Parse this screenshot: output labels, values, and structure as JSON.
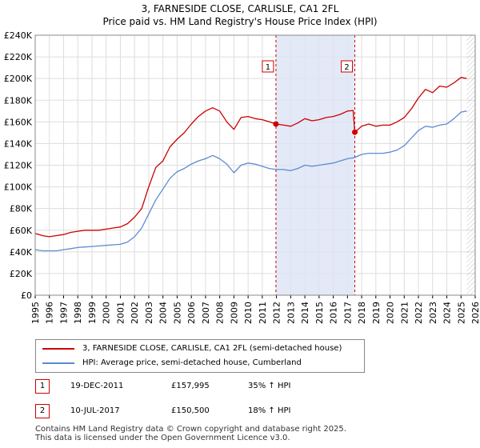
{
  "chart_data": {
    "type": "line",
    "title": "3, FARNESIDE CLOSE, CARLISLE, CA1 2FL",
    "subtitle": "Price paid vs. HM Land Registry's House Price Index (HPI)",
    "xlim": [
      1995,
      2026
    ],
    "ylim": [
      0,
      240000
    ],
    "xticks": [
      "1995",
      "1996",
      "1997",
      "1998",
      "1999",
      "2000",
      "2001",
      "2002",
      "2003",
      "2004",
      "2005",
      "2006",
      "2007",
      "2008",
      "2009",
      "2010",
      "2011",
      "2012",
      "2013",
      "2014",
      "2015",
      "2016",
      "2017",
      "2018",
      "2019",
      "2020",
      "2021",
      "2022",
      "2023",
      "2024",
      "2025",
      "2026"
    ],
    "yticks": [
      "£0",
      "£20K",
      "£40K",
      "£60K",
      "£80K",
      "£100K",
      "£120K",
      "£140K",
      "£160K",
      "£180K",
      "£200K",
      "£220K",
      "£240K"
    ],
    "yvalues": [
      0,
      20000,
      40000,
      60000,
      80000,
      100000,
      120000,
      140000,
      160000,
      180000,
      200000,
      220000,
      240000
    ],
    "grid": true,
    "series": [
      {
        "name": "3, FARNESIDE CLOSE, CARLISLE, CA1 2FL (semi-detached house)",
        "color": "#cc0000",
        "x": [
          1995.0,
          1995.5,
          1996.0,
          1996.5,
          1997.0,
          1997.5,
          1998.0,
          1998.5,
          1999.0,
          1999.5,
          2000.0,
          2000.5,
          2001.0,
          2001.5,
          2002.0,
          2002.5,
          2003.0,
          2003.5,
          2004.0,
          2004.5,
          2005.0,
          2005.5,
          2006.0,
          2006.5,
          2007.0,
          2007.5,
          2008.0,
          2008.5,
          2009.0,
          2009.5,
          2010.0,
          2010.5,
          2011.0,
          2011.5,
          2011.96,
          2012.5,
          2013.0,
          2013.5,
          2014.0,
          2014.5,
          2015.0,
          2015.5,
          2016.0,
          2016.5,
          2017.0,
          2017.4,
          2017.52,
          2018.0,
          2018.5,
          2019.0,
          2019.5,
          2020.0,
          2020.5,
          2021.0,
          2021.5,
          2022.0,
          2022.5,
          2023.0,
          2023.5,
          2024.0,
          2024.5,
          2025.0,
          2025.4
        ],
        "values": [
          57000,
          55000,
          54000,
          55000,
          56000,
          58000,
          59000,
          60000,
          60000,
          60000,
          61000,
          62000,
          63000,
          66000,
          72000,
          80000,
          100000,
          118000,
          124000,
          137000,
          144000,
          150000,
          158000,
          165000,
          170000,
          173000,
          170000,
          160000,
          153000,
          164000,
          165000,
          163000,
          162000,
          160000,
          157995,
          157000,
          156000,
          159000,
          163000,
          161000,
          162000,
          164000,
          165000,
          167000,
          170000,
          170500,
          150500,
          156000,
          158000,
          156000,
          157000,
          157000,
          160000,
          164000,
          172000,
          182000,
          190000,
          187000,
          193000,
          192000,
          196000,
          201000,
          200000
        ]
      },
      {
        "name": "HPI: Average price, semi-detached house, Cumberland",
        "color": "#5b8bd0",
        "x": [
          1995.0,
          1995.5,
          1996.0,
          1996.5,
          1997.0,
          1997.5,
          1998.0,
          1998.5,
          1999.0,
          1999.5,
          2000.0,
          2000.5,
          2001.0,
          2001.5,
          2002.0,
          2002.5,
          2003.0,
          2003.5,
          2004.0,
          2004.5,
          2005.0,
          2005.5,
          2006.0,
          2006.5,
          2007.0,
          2007.5,
          2008.0,
          2008.5,
          2009.0,
          2009.5,
          2010.0,
          2010.5,
          2011.0,
          2011.5,
          2012.0,
          2012.5,
          2013.0,
          2013.5,
          2014.0,
          2014.5,
          2015.0,
          2015.5,
          2016.0,
          2016.5,
          2017.0,
          2017.5,
          2018.0,
          2018.5,
          2019.0,
          2019.5,
          2020.0,
          2020.5,
          2021.0,
          2021.5,
          2022.0,
          2022.5,
          2023.0,
          2023.5,
          2024.0,
          2024.5,
          2025.0,
          2025.4
        ],
        "values": [
          42000,
          41000,
          41000,
          41000,
          42000,
          43000,
          44000,
          44500,
          45000,
          45500,
          46000,
          46500,
          47000,
          49000,
          54000,
          62000,
          75000,
          88000,
          98000,
          108000,
          114000,
          117000,
          121000,
          124000,
          126000,
          129000,
          126000,
          121000,
          113000,
          120000,
          122000,
          121000,
          119000,
          117000,
          116000,
          116000,
          115000,
          117000,
          120000,
          119000,
          120000,
          121000,
          122000,
          124000,
          126000,
          127000,
          130000,
          131000,
          131000,
          131000,
          132000,
          134000,
          138000,
          145000,
          152000,
          156000,
          155000,
          157000,
          158000,
          163000,
          169000,
          170000
        ]
      }
    ],
    "sales": [
      {
        "label": "1",
        "x": 2011.96,
        "value": 157995
      },
      {
        "label": "2",
        "x": 2017.52,
        "value": 150500
      }
    ],
    "shaded_spans": [
      [
        2011.96,
        2017.52
      ]
    ],
    "future_hatch_from": 2025.4,
    "marker_colors": {
      "line": "#cc0000",
      "shade": "#dde4f5",
      "grid": "#dddddd"
    }
  },
  "legend": {
    "property_label": "3, FARNESIDE CLOSE, CARLISLE, CA1 2FL (semi-detached house)",
    "hpi_label": "HPI: Average price, semi-detached house, Cumberland"
  },
  "sales_table": [
    {
      "num": "1",
      "date": "19-DEC-2011",
      "price": "£157,995",
      "hpi": "35% ↑ HPI"
    },
    {
      "num": "2",
      "date": "10-JUL-2017",
      "price": "£150,500",
      "hpi": "18% ↑ HPI"
    }
  ],
  "footer": {
    "line1": "Contains HM Land Registry data © Crown copyright and database right 2025.",
    "line2": "This data is licensed under the Open Government Licence v3.0."
  }
}
